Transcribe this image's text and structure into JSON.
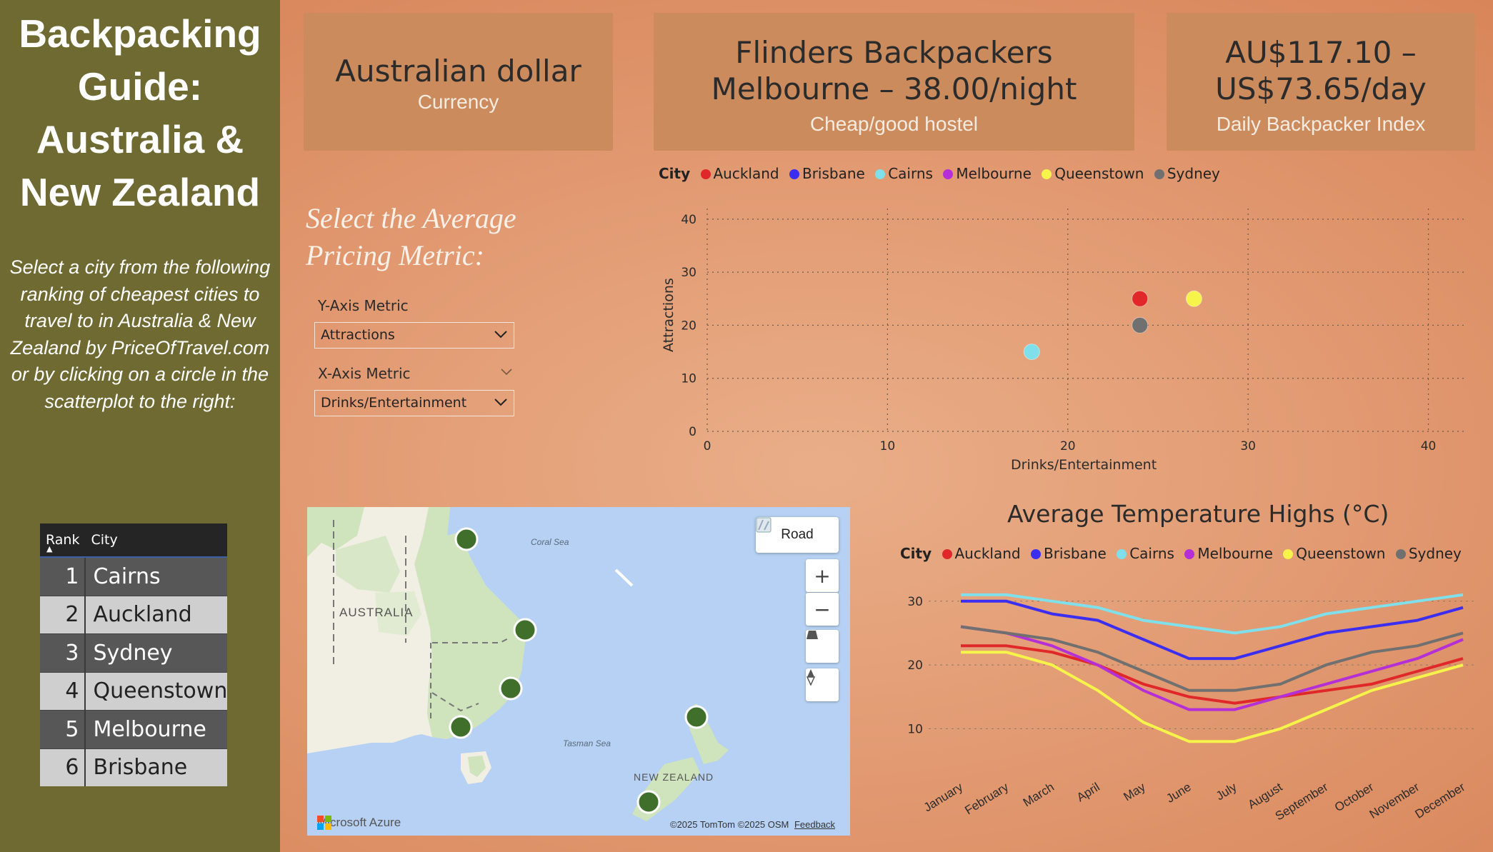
{
  "sidebar": {
    "title_lines": [
      "Backpacking",
      "Guide:",
      "Australia &",
      "New Zealand"
    ],
    "description": "Select a city from the following ranking of cheapest cities to travel to in Australia & New Zealand by PriceOfTravel.com or by clicking on a circle in the scatterplot to the right:",
    "table": {
      "headers": [
        "Rank",
        "City"
      ],
      "rows": [
        {
          "rank": "1",
          "city": "Cairns"
        },
        {
          "rank": "2",
          "city": "Auckland"
        },
        {
          "rank": "3",
          "city": "Sydney"
        },
        {
          "rank": "4",
          "city": "Queenstown"
        },
        {
          "rank": "5",
          "city": "Melbourne"
        },
        {
          "rank": "6",
          "city": "Brisbane"
        }
      ]
    }
  },
  "cards": [
    {
      "value_lines": [
        "Australian dollar"
      ],
      "label": "Currency"
    },
    {
      "value_lines": [
        "Flinders Backpackers",
        "Melbourne – 38.00/night"
      ],
      "label": "Cheap/good hostel"
    },
    {
      "value_lines": [
        "AU$117.10 –",
        "US$73.65/day"
      ],
      "label": "Daily Backpacker Index"
    }
  ],
  "metric_selector": {
    "heading_lines": [
      "Select the Average",
      "Pricing Metric:"
    ],
    "y_label": "Y-Axis Metric",
    "y_value": "Attractions",
    "x_label": "X-Axis Metric",
    "x_value": "Drinks/Entertainment"
  },
  "legend": {
    "title": "City",
    "items": [
      {
        "name": "Auckland",
        "color": "#e0282a"
      },
      {
        "name": "Brisbane",
        "color": "#3b2ef0"
      },
      {
        "name": "Cairns",
        "color": "#7fe0ec"
      },
      {
        "name": "Melbourne",
        "color": "#b42fd6"
      },
      {
        "name": "Queenstown",
        "color": "#f6f34a"
      },
      {
        "name": "Sydney",
        "color": "#707070"
      }
    ]
  },
  "map": {
    "road_label": "Road",
    "labels": {
      "coral": "Coral Sea",
      "australia": "AUSTRALIA",
      "tasman": "Tasman Sea",
      "nz": "NEW ZEALAND"
    },
    "brand": "Microsoft Azure",
    "attribution": "©2025 TomTom  ©2025 OSM",
    "feedback": "Feedback",
    "icons": [
      "road-icon",
      "zoom-in-icon",
      "zoom-out-icon",
      "tilt-icon",
      "compass-icon"
    ]
  },
  "chart_data": [
    {
      "type": "scatter",
      "xlabel": "Drinks/Entertainment",
      "ylabel": "Attractions",
      "xlim": [
        0,
        42
      ],
      "ylim": [
        0,
        42
      ],
      "xticks": [
        "0",
        "10",
        "20",
        "30",
        "40"
      ],
      "yticks": [
        "0",
        "10",
        "20",
        "30",
        "40"
      ],
      "grid": true,
      "legend_position": "top-left",
      "points": [
        {
          "series": "Auckland",
          "x": 24,
          "y": 25
        },
        {
          "series": "Queenstown",
          "x": 27,
          "y": 25
        },
        {
          "series": "Sydney",
          "x": 24,
          "y": 20
        },
        {
          "series": "Cairns",
          "x": 18,
          "y": 15
        }
      ]
    },
    {
      "type": "line",
      "title": "Average Temperature Highs (°C)",
      "categories": [
        "January",
        "February",
        "March",
        "April",
        "May",
        "June",
        "July",
        "August",
        "September",
        "October",
        "November",
        "December"
      ],
      "ylim": [
        5,
        33
      ],
      "yticks": [
        "10",
        "20",
        "30"
      ],
      "grid": true,
      "legend_position": "top-left",
      "series": [
        {
          "name": "Auckland",
          "values": [
            23,
            23,
            22,
            20,
            17,
            15,
            14,
            15,
            16,
            17,
            19,
            21
          ]
        },
        {
          "name": "Brisbane",
          "values": [
            30,
            30,
            28,
            27,
            24,
            21,
            21,
            23,
            25,
            26,
            27,
            29
          ]
        },
        {
          "name": "Cairns",
          "values": [
            31,
            31,
            30,
            29,
            27,
            26,
            25,
            26,
            28,
            29,
            30,
            31
          ]
        },
        {
          "name": "Melbourne",
          "values": [
            26,
            25,
            23,
            20,
            16,
            13,
            13,
            15,
            17,
            19,
            21,
            24
          ]
        },
        {
          "name": "Queenstown",
          "values": [
            22,
            22,
            20,
            16,
            11,
            8,
            8,
            10,
            13,
            16,
            18,
            20
          ]
        },
        {
          "name": "Sydney",
          "values": [
            26,
            25,
            24,
            22,
            19,
            16,
            16,
            17,
            20,
            22,
            23,
            25
          ]
        }
      ]
    }
  ]
}
